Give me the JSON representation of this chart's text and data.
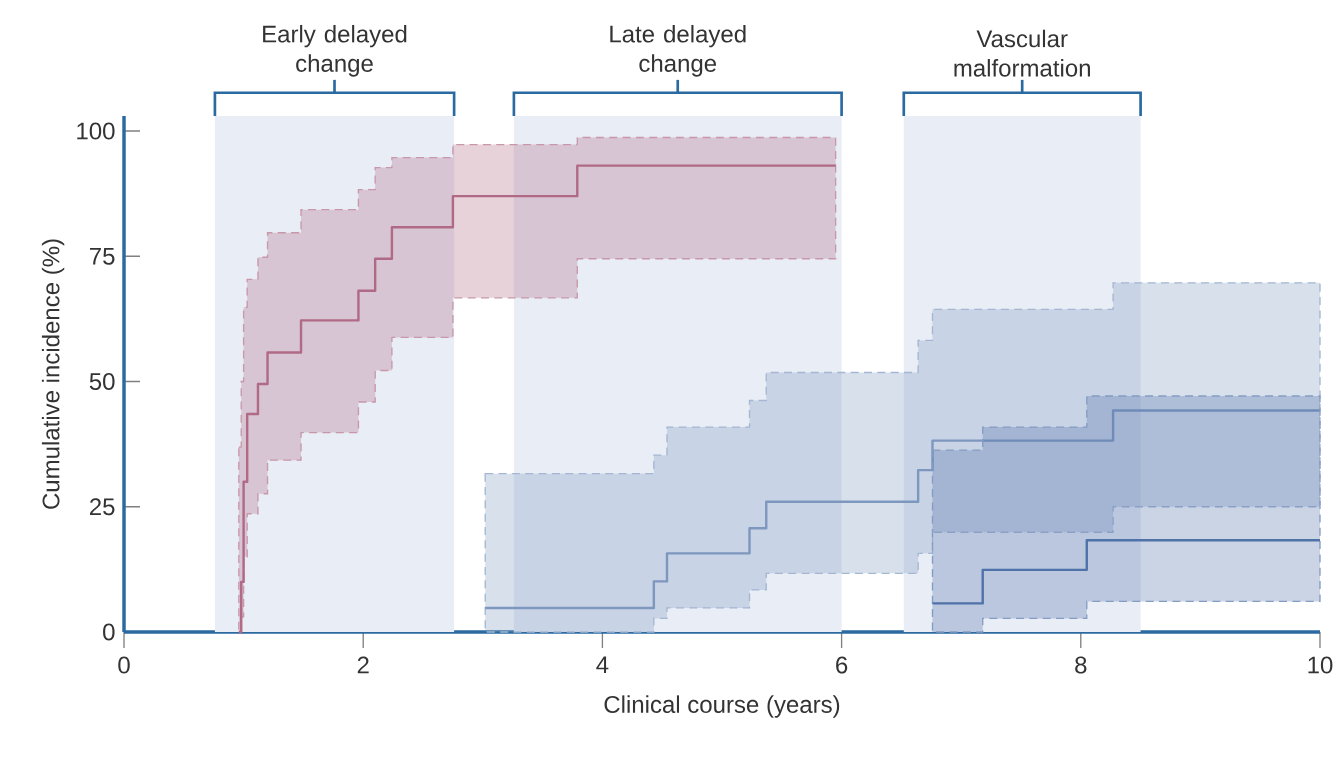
{
  "chart_data": {
    "type": "step",
    "xlabel": "Clinical course (years)",
    "ylabel": "Cumulative incidence (%)",
    "xlim": [
      0,
      10
    ],
    "ylim": [
      0,
      103
    ],
    "xticks": [
      0,
      2,
      4,
      6,
      8,
      10
    ],
    "yticks": [
      0,
      25,
      50,
      75,
      100
    ],
    "grid": false,
    "marker": "none",
    "line_style": "solid",
    "bands": [
      {
        "axis": "x",
        "from": 0.76,
        "to": 2.76,
        "label": "Early delayed change",
        "color": "#e9edf5"
      },
      {
        "axis": "x",
        "from": 3.26,
        "to": 6.0,
        "label": "Late delayed change",
        "color": "#e9edf5"
      },
      {
        "axis": "x",
        "from": 6.52,
        "to": 8.5,
        "label": "Vascular malformation",
        "color": "#e9edf5"
      }
    ],
    "series": [
      {
        "color": "#b06a85",
        "x": [
          0.96,
          0.98,
          1.0,
          1.03,
          1.12,
          1.2,
          1.48,
          1.96,
          2.1,
          2.24,
          2.75,
          3.79,
          5.95
        ],
        "values": [
          0,
          10,
          30,
          43.5,
          49.5,
          55.8,
          62.2,
          68.1,
          74.5,
          80.8,
          87,
          93.1,
          93.1
        ],
        "lower": [
          0,
          3,
          15,
          23.6,
          27.6,
          34.3,
          39.8,
          45.9,
          52.2,
          58.8,
          66.7,
          74.5,
          74.5
        ],
        "upper": [
          36.9,
          50,
          64.8,
          70.4,
          74.8,
          79.7,
          84.3,
          88.3,
          92.7,
          94.7,
          97.3,
          98.7,
          98.7
        ]
      },
      {
        "color": "#7d97bf",
        "x": [
          3.02,
          4.43,
          4.54,
          5.23,
          5.37,
          6.64,
          6.76,
          8.27,
          10
        ],
        "values": [
          4.8,
          10.1,
          15.7,
          20.7,
          26.0,
          32.3,
          38.2,
          44.2,
          44.2
        ],
        "lower": [
          0,
          2.7,
          4.8,
          8.4,
          11.7,
          15.7,
          19.9,
          25.0,
          25.0
        ],
        "upper": [
          31.6,
          35.3,
          40.9,
          46.2,
          51.8,
          58.2,
          64.4,
          69.7,
          69.7
        ]
      },
      {
        "color": "#4f72a8",
        "x": [
          6.76,
          7.18,
          8.05,
          10
        ],
        "values": [
          5.7,
          12.4,
          18.3,
          18.3
        ],
        "lower": [
          0,
          2.7,
          6.1,
          6.1
        ],
        "upper": [
          36.3,
          40.9,
          47.1,
          47.1
        ]
      }
    ]
  }
}
